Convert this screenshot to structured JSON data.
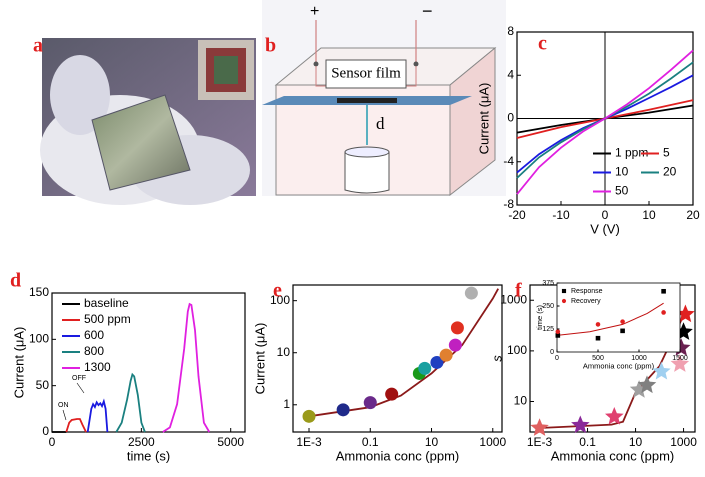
{
  "photo": {
    "panel_label": "a"
  },
  "diagram": {
    "panel_label": "b",
    "plus": "+",
    "minus": "−",
    "film": "Sensor film",
    "distance": "d"
  },
  "chart_data": [
    {
      "type": "line",
      "panel_label": "c",
      "xlabel": "V (V)",
      "ylabel": "Current (μA)",
      "xlim": [
        -20,
        20
      ],
      "ylim": [
        -8,
        8
      ],
      "xticks": [
        -20,
        -10,
        0,
        10,
        20
      ],
      "yticks": [
        -8,
        -4,
        0,
        4,
        8
      ],
      "zero_axes": true,
      "legend": "lower right",
      "legend_columns": 2,
      "series": [
        {
          "name": "1 ppm",
          "color": "#000000",
          "style": "line",
          "x": [
            -20,
            -10,
            0,
            10,
            20
          ],
          "values": [
            -1.3,
            -0.6,
            0,
            0.55,
            1.2
          ]
        },
        {
          "name": "5",
          "color": "#e02020",
          "style": "line",
          "x": [
            -20,
            -10,
            0,
            10,
            20
          ],
          "values": [
            -1.8,
            -0.8,
            0,
            0.8,
            1.7
          ]
        },
        {
          "name": "10",
          "color": "#1a1ae0",
          "style": "line",
          "x": [
            -20,
            -15,
            -10,
            -5,
            0,
            5,
            10,
            15,
            20
          ],
          "values": [
            -5.0,
            -3.3,
            -2.0,
            -0.9,
            0,
            0.9,
            1.9,
            2.9,
            4.0
          ]
        },
        {
          "name": "20",
          "color": "#1a8080",
          "style": "line",
          "x": [
            -20,
            -15,
            -10,
            -5,
            0,
            5,
            10,
            15,
            20
          ],
          "values": [
            -5.5,
            -3.6,
            -2.2,
            -1.0,
            0,
            1.1,
            2.3,
            3.7,
            5.2
          ]
        },
        {
          "name": "50",
          "color": "#e020e0",
          "style": "line",
          "x": [
            -20,
            -15,
            -10,
            -5,
            0,
            5,
            10,
            15,
            20
          ],
          "values": [
            -7.0,
            -4.5,
            -2.7,
            -1.2,
            0,
            1.3,
            2.8,
            4.5,
            6.3
          ]
        }
      ]
    },
    {
      "type": "line",
      "panel_label": "d",
      "xlabel": "time (s)",
      "ylabel": "Current (μA)",
      "xlim": [
        0,
        5400
      ],
      "ylim": [
        0,
        150
      ],
      "xticks": [
        0,
        2500,
        5000
      ],
      "yticks": [
        0,
        50,
        100,
        150
      ],
      "legend": "upper left",
      "legend_columns": 1,
      "annotations": [
        "ON",
        "OFF"
      ],
      "series": [
        {
          "name": "baseline",
          "color": "#000000",
          "style": "line",
          "x": [
            0,
            200,
            400
          ],
          "values": [
            0,
            0,
            0
          ]
        },
        {
          "name": "500 ppm",
          "color": "#e02020",
          "style": "line",
          "x": [
            400,
            480,
            550,
            700,
            780,
            850,
            950
          ],
          "values": [
            0,
            10,
            13,
            14,
            14,
            8,
            0
          ]
        },
        {
          "name": "600",
          "color": "#1a1ae0",
          "style": "line",
          "x": [
            1000,
            1100,
            1150,
            1200,
            1250,
            1300,
            1350,
            1400,
            1450,
            1500,
            1550
          ],
          "values": [
            0,
            25,
            30,
            27,
            32,
            29,
            31,
            28,
            33,
            25,
            0
          ]
        },
        {
          "name": "800",
          "color": "#1a8080",
          "style": "line",
          "x": [
            1800,
            1950,
            2100,
            2200,
            2250,
            2300,
            2400,
            2500,
            2600
          ],
          "values": [
            0,
            10,
            35,
            55,
            62,
            60,
            40,
            10,
            0
          ]
        },
        {
          "name": "1300",
          "color": "#e020e0",
          "style": "line",
          "x": [
            3100,
            3300,
            3500,
            3700,
            3800,
            3850,
            3900,
            4000,
            4100,
            4250,
            4400
          ],
          "values": [
            0,
            5,
            30,
            90,
            130,
            138,
            137,
            110,
            60,
            10,
            0
          ]
        }
      ]
    },
    {
      "type": "scatter",
      "panel_label": "e",
      "xlabel": "Ammonia conc (ppm)",
      "ylabel": "Current (μA)",
      "log_x": true,
      "log_y": true,
      "xlim": [
        0.0003,
        2000
      ],
      "ylim": [
        0.3,
        200
      ],
      "xticks": [
        {
          "value": 0.001,
          "label": "1E-3"
        },
        0.1,
        10,
        1000
      ],
      "yticks": [
        1,
        10,
        100
      ],
      "series": [
        {
          "style": "line",
          "color": "#8b1a1a",
          "x": [
            0.001,
            0.1,
            1,
            10,
            100,
            1000,
            1500
          ],
          "values": [
            0.6,
            0.9,
            1.5,
            4,
            14,
            110,
            170
          ]
        },
        {
          "style": "circle",
          "colors": [
            "#9a9a1a",
            "#1f2a8a",
            "#6a2a8a",
            "#a01010",
            "#1a9a1a",
            "#1aa0a0",
            "#2040c0",
            "#e08030",
            "#e03020",
            "#c020c0",
            "#b0b0b0"
          ],
          "x": [
            0.001,
            0.013,
            0.1,
            0.5,
            4,
            6,
            15,
            30,
            70,
            60,
            200
          ],
          "values": [
            0.6,
            0.8,
            1.1,
            1.6,
            4,
            5,
            6.5,
            9,
            30,
            14,
            140
          ]
        }
      ]
    },
    {
      "type": "scatter",
      "panel_label": "f",
      "xlabel": "Ammonia conc (ppm)",
      "ylabel": "s",
      "log_x": true,
      "log_y": true,
      "xlim": [
        0.0004,
        3000
      ],
      "ylim": [
        2.5,
        2000
      ],
      "xticks": [
        {
          "value": 0.001,
          "label": "1E-3"
        },
        0.1,
        10,
        1000
      ],
      "yticks": [
        10,
        100,
        1000
      ],
      "series": [
        {
          "style": "line",
          "color": "#8b1a1a",
          "x": [
            0.001,
            1,
            3,
            10,
            100,
            1000
          ],
          "values": [
            3,
            3.5,
            4,
            15,
            50,
            500
          ]
        },
        {
          "style": "star",
          "colors": [
            "#e06060",
            "#8a2a9a",
            "#e04070",
            "#a0a0a0",
            "#808080",
            "#a0d0f0",
            "#f0a0b0",
            "#6a2050",
            "#000000",
            "#e02020"
          ],
          "x": [
            0.001,
            0.05,
            1.3,
            14,
            30,
            120,
            700,
            800,
            1000,
            1200
          ],
          "values": [
            3,
            3.4,
            5,
            17,
            21,
            39,
            55,
            114,
            236,
            530
          ]
        }
      ]
    },
    {
      "type": "scatter",
      "xlabel": "Ammonia conc (ppm)",
      "ylabel": "time (s)",
      "xlim": [
        0,
        1500
      ],
      "ylim": [
        0,
        375
      ],
      "xticks": [
        0,
        500,
        1000,
        1500
      ],
      "yticks": [
        0,
        125,
        250,
        375
      ],
      "legend": "upper left",
      "legend_columns": 1,
      "series": [
        {
          "style": "line",
          "color": "#c01010",
          "x": [
            0,
            400,
            800,
            1100,
            1300
          ],
          "values": [
            90,
            110,
            150,
            210,
            265
          ]
        },
        {
          "name": "Response",
          "style": "square",
          "color": "#000000",
          "x": [
            10,
            500,
            800,
            1300
          ],
          "values": [
            90,
            75,
            115,
            330
          ]
        },
        {
          "name": "Recovery",
          "style": "circle",
          "color": "#e02020",
          "x": [
            10,
            500,
            800,
            1300
          ],
          "values": [
            110,
            150,
            165,
            215
          ]
        }
      ]
    }
  ]
}
